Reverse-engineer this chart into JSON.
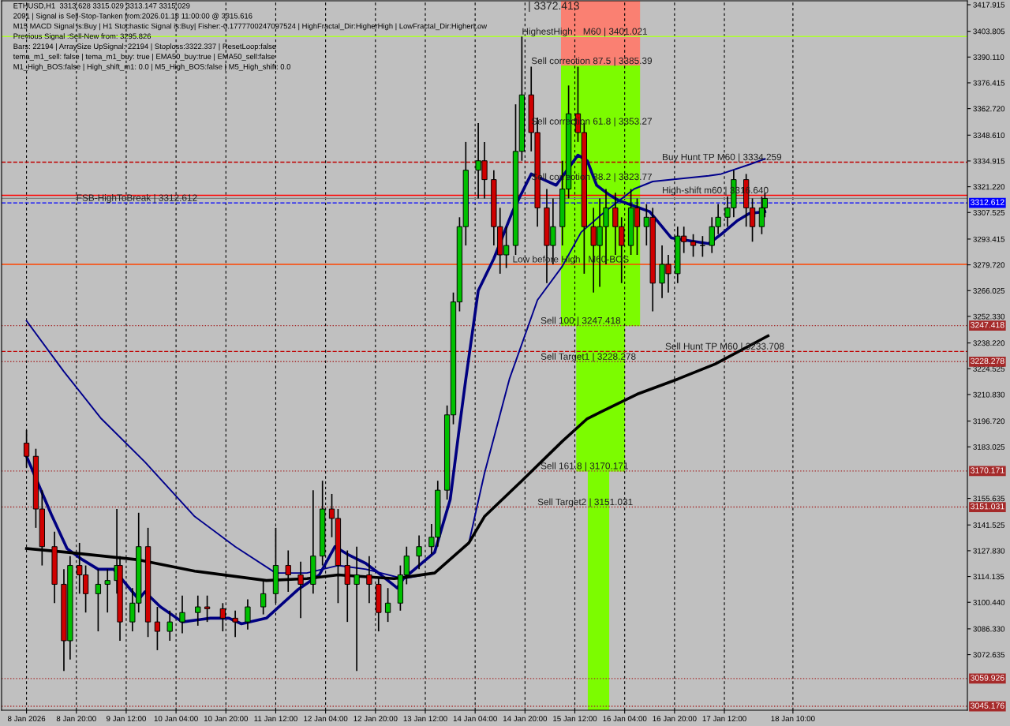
{
  "chart_data": {
    "type": "candlestick",
    "x": [
      "2026-01-08T04:00",
      "2026-01-08T07:00",
      "2026-01-08T09:00",
      "2026-01-08T13:00",
      "2026-01-08T16:00",
      "2026-01-08T18:00",
      "2026-01-08T21:00",
      "2026-01-08T23:00",
      "2026-01-09T03:00",
      "2026-01-09T06:00",
      "2026-01-09T09:00",
      "2026-01-09T10:00",
      "2026-01-09T14:00",
      "2026-01-09T16:00",
      "2026-01-09T19:00",
      "2026-01-09T22:00",
      "2026-01-10T02:00",
      "2026-01-10T06:00",
      "2026-01-10T11:00",
      "2026-01-10T14:00",
      "2026-01-10T19:00",
      "2026-01-10T23:00",
      "2026-01-11T03:00",
      "2026-01-11T08:00",
      "2026-01-11T12:00",
      "2026-01-11T16:00",
      "2026-01-11T20:00",
      "2026-01-12T00:00",
      "2026-01-12T03:00",
      "2026-01-12T06:00",
      "2026-01-12T08:00",
      "2026-01-12T11:00",
      "2026-01-12T14:00",
      "2026-01-12T18:00",
      "2026-01-12T21:00",
      "2026-01-13T00:00",
      "2026-01-13T04:00",
      "2026-01-13T06:00",
      "2026-01-13T10:00",
      "2026-01-13T14:00",
      "2026-01-13T16:00",
      "2026-01-13T19:00",
      "2026-01-13T21:00",
      "2026-01-13T23:00",
      "2026-01-14T01:00",
      "2026-01-14T05:00",
      "2026-01-14T07:00",
      "2026-01-14T10:00",
      "2026-01-14T12:00",
      "2026-01-14T14:00",
      "2026-01-14T17:00",
      "2026-01-14T19:00",
      "2026-01-14T22:00",
      "2026-01-15T00:00",
      "2026-01-15T03:00",
      "2026-01-15T05:00",
      "2026-01-15T08:00",
      "2026-01-15T10:00",
      "2026-01-15T13:00",
      "2026-01-15T15:00",
      "2026-01-15T18:00",
      "2026-01-15T20:00",
      "2026-01-15T22:00",
      "2026-01-16T01:00",
      "2026-01-16T03:00",
      "2026-01-16T06:00",
      "2026-01-16T08:00",
      "2026-01-16T11:00",
      "2026-01-16T13:00",
      "2026-01-16T16:00",
      "2026-01-16T18:00",
      "2026-01-16T21:00",
      "2026-01-16T23:00",
      "2026-01-17T02:00",
      "2026-01-17T05:00",
      "2026-01-17T08:00",
      "2026-01-17T10:00",
      "2026-01-17T13:00",
      "2026-01-17T15:00",
      "2026-01-17T19:00",
      "2026-01-17T21:00",
      "2026-01-18T00:00",
      "2026-01-18T01:00"
    ],
    "ohlc": [
      [
        3185,
        3192,
        3172,
        3178
      ],
      [
        3178,
        3182,
        3140,
        3150
      ],
      [
        3150,
        3160,
        3120,
        3130
      ],
      [
        3130,
        3138,
        3100,
        3110
      ],
      [
        3110,
        3118,
        3064,
        3080
      ],
      [
        3080,
        3125,
        3070,
        3120
      ],
      [
        3120,
        3132,
        3105,
        3115
      ],
      [
        3115,
        3120,
        3095,
        3105
      ],
      [
        3105,
        3118,
        3085,
        3110
      ],
      [
        3110,
        3118,
        3095,
        3112
      ],
      [
        3112,
        3150,
        3105,
        3120
      ],
      [
        3120,
        3125,
        3080,
        3090
      ],
      [
        3090,
        3108,
        3085,
        3100
      ],
      [
        3100,
        3148,
        3095,
        3130
      ],
      [
        3130,
        3140,
        3082,
        3090
      ],
      [
        3090,
        3098,
        3075,
        3085
      ],
      [
        3085,
        3096,
        3080,
        3090
      ],
      [
        3090,
        3104,
        3084,
        3095
      ],
      [
        3095,
        3104,
        3088,
        3098
      ],
      [
        3098,
        3104,
        3090,
        3097
      ],
      [
        3097,
        3100,
        3085,
        3092
      ],
      [
        3092,
        3096,
        3082,
        3090
      ],
      [
        3090,
        3102,
        3086,
        3098
      ],
      [
        3098,
        3112,
        3094,
        3105
      ],
      [
        3105,
        3140,
        3100,
        3120
      ],
      [
        3120,
        3128,
        3106,
        3115
      ],
      [
        3115,
        3122,
        3092,
        3110
      ],
      [
        3110,
        3160,
        3105,
        3125
      ],
      [
        3125,
        3165,
        3120,
        3150
      ],
      [
        3150,
        3158,
        3135,
        3145
      ],
      [
        3145,
        3150,
        3100,
        3120
      ],
      [
        3120,
        3128,
        3090,
        3110
      ],
      [
        3110,
        3130,
        3064,
        3115
      ],
      [
        3115,
        3125,
        3100,
        3110
      ],
      [
        3110,
        3114,
        3085,
        3095
      ],
      [
        3095,
        3108,
        3090,
        3100
      ],
      [
        3100,
        3120,
        3096,
        3115
      ],
      [
        3115,
        3130,
        3110,
        3125
      ],
      [
        3125,
        3136,
        3118,
        3130
      ],
      [
        3130,
        3142,
        3126,
        3135
      ],
      [
        3135,
        3165,
        3130,
        3160
      ],
      [
        3160,
        3205,
        3155,
        3200
      ],
      [
        3200,
        3265,
        3195,
        3260
      ],
      [
        3260,
        3305,
        3255,
        3300
      ],
      [
        3300,
        3345,
        3290,
        3330
      ],
      [
        3330,
        3355,
        3315,
        3335
      ],
      [
        3335,
        3345,
        3315,
        3325
      ],
      [
        3325,
        3330,
        3290,
        3300
      ],
      [
        3300,
        3310,
        3275,
        3285
      ],
      [
        3285,
        3300,
        3278,
        3290
      ],
      [
        3290,
        3365,
        3285,
        3340
      ],
      [
        3340,
        3401,
        3335,
        3370
      ],
      [
        3370,
        3385,
        3340,
        3350
      ],
      [
        3350,
        3358,
        3300,
        3310
      ],
      [
        3310,
        3320,
        3270,
        3290
      ],
      [
        3290,
        3315,
        3280,
        3300
      ],
      [
        3300,
        3335,
        3290,
        3320
      ],
      [
        3320,
        3375,
        3315,
        3360
      ],
      [
        3360,
        3385,
        3345,
        3350
      ],
      [
        3350,
        3355,
        3275,
        3300
      ],
      [
        3300,
        3310,
        3265,
        3290
      ],
      [
        3290,
        3315,
        3268,
        3300
      ],
      [
        3300,
        3320,
        3280,
        3310
      ],
      [
        3310,
        3318,
        3285,
        3300
      ],
      [
        3300,
        3305,
        3270,
        3290
      ],
      [
        3290,
        3320,
        3285,
        3310
      ],
      [
        3310,
        3315,
        3285,
        3300
      ],
      [
        3300,
        3312,
        3290,
        3305
      ],
      [
        3305,
        3310,
        3255,
        3270
      ],
      [
        3270,
        3290,
        3262,
        3280
      ],
      [
        3280,
        3285,
        3265,
        3275
      ],
      [
        3275,
        3300,
        3270,
        3295
      ],
      [
        3295,
        3300,
        3286,
        3292
      ],
      [
        3292,
        3296,
        3284,
        3290
      ],
      [
        3290,
        3295,
        3284,
        3290
      ],
      [
        3290,
        3305,
        3286,
        3300
      ],
      [
        3300,
        3312,
        3296,
        3305
      ],
      [
        3305,
        3316,
        3300,
        3310
      ],
      [
        3310,
        3330,
        3305,
        3325
      ],
      [
        3325,
        3328,
        3300,
        3310
      ],
      [
        3310,
        3315,
        3292,
        3300
      ],
      [
        3300,
        3316,
        3296,
        3310
      ],
      [
        3310,
        3318,
        3305,
        3315
      ]
    ],
    "series": [
      {
        "type": "line",
        "color": "#fa8072",
        "x": [
          "2026-01-15T07:42",
          "2026-01-16T08:48"
        ],
        "values": [
          null,
          null
        ],
        "lower": [
          3385.4,
          3385.4
        ],
        "upper": [
          3420,
          3420
        ]
      },
      {
        "type": "line",
        "color": "#7cfc00",
        "x": [
          "2026-01-15T07:42",
          "2026-01-15T12:36",
          "2026-01-15T12:36",
          "2026-01-15T16:18",
          "2026-01-15T16:18",
          "2026-01-15T22:54",
          "2026-01-15T22:54",
          "2026-01-16T03:54",
          "2026-01-16T03:54",
          "2026-01-16T08:48"
        ],
        "values": [
          null,
          null,
          null,
          null,
          null,
          null,
          null,
          null,
          null,
          null
        ],
        "lower": [
          3247.4,
          3247.4,
          3170.2,
          3170.2,
          3043.1,
          3043.1,
          3170.2,
          3170.2,
          3247.4,
          3247.4
        ],
        "upper": [
          3385.4,
          3385.4,
          3385.4,
          3385.4,
          3385.4,
          3385.4,
          3385.4,
          3385.4,
          3385.4,
          3385.4
        ]
      },
      {
        "type": "line",
        "color": "#000080",
        "x": [
          "2026-01-08T04:00",
          "2026-01-08T12:00",
          "2026-01-08T17:00",
          "2026-01-08T22:00",
          "2026-01-09T03:00",
          "2026-01-09T08:00",
          "2026-01-09T16:00",
          "2026-01-09T18:00",
          "2026-01-09T23:00",
          "2026-01-10T06:00",
          "2026-01-10T15:00",
          "2026-01-10T21:00",
          "2026-01-11T01:00",
          "2026-01-11T09:00",
          "2026-01-11T19:00",
          "2026-01-12T02:00",
          "2026-01-12T07:00",
          "2026-01-12T11:00",
          "2026-01-12T17:00",
          "2026-01-12T21:00",
          "2026-01-13T03:00",
          "2026-01-13T05:00",
          "2026-01-13T15:00",
          "2026-01-13T20:00",
          "2026-01-13T23:00",
          "2026-01-14T01:00",
          "2026-01-14T05:00",
          "2026-01-14T10:00",
          "2026-01-14T16:00",
          "2026-01-14T22:00",
          "2026-01-15T02:00",
          "2026-01-15T06:00",
          "2026-01-15T13:00",
          "2026-01-15T16:00",
          "2026-01-15T19:00",
          "2026-01-15T23:00",
          "2026-01-16T02:00",
          "2026-01-16T07:00",
          "2026-01-16T12:00",
          "2026-01-16T19:00",
          "2026-01-16T23:00",
          "2026-01-17T07:00",
          "2026-01-17T11:00",
          "2026-01-17T16:00",
          "2026-01-17T20:00",
          "2026-01-18T01:00"
        ],
        "values": [
          3178,
          3147,
          3129,
          3123,
          3118,
          3118,
          3102,
          3106,
          3098,
          3090,
          3092,
          3092,
          3089,
          3092,
          3107,
          3115,
          3130,
          3126,
          3121,
          3116,
          3108,
          3113,
          3127,
          3155,
          3194,
          3219,
          3266,
          3283,
          3308,
          3328,
          3325,
          3322,
          3338,
          3335,
          3322,
          3317,
          3314,
          3311,
          3308,
          3294,
          3293,
          3291,
          3296,
          3303,
          3307,
          3308
        ]
      },
      {
        "type": "line",
        "color": "#00008b",
        "x": [
          "2026-01-08T04:00",
          "2026-01-08T16:00",
          "2026-01-09T04:00",
          "2026-01-09T18:00",
          "2026-01-10T10:00",
          "2026-01-10T23:00",
          "2026-01-11T12:00",
          "2026-01-11T22:00",
          "2026-01-12T08:00",
          "2026-01-12T17:00",
          "2026-01-13T05:00",
          "2026-01-13T15:00",
          "2026-01-14T02:00",
          "2026-01-14T07:00",
          "2026-01-14T15:00",
          "2026-01-15T00:00",
          "2026-01-15T08:00",
          "2026-01-15T14:00",
          "2026-01-15T21:00",
          "2026-01-16T07:00",
          "2026-01-16T13:00",
          "2026-01-17T07:00",
          "2026-01-17T11:00",
          "2026-01-17T20:00",
          "2026-01-18T01:00"
        ],
        "values": [
          3250,
          3223,
          3198,
          3175,
          3146,
          3130,
          3116,
          3116,
          3120,
          3118,
          3113,
          3116,
          3132,
          3169,
          3219,
          3261,
          3279,
          3297,
          3307,
          3320,
          3324,
          3327,
          3328,
          3333,
          3336
        ]
      },
      {
        "type": "line",
        "color": "#000000",
        "x": [
          "2026-01-08T04:00",
          "2026-01-08T17:00",
          "2026-01-09T16:00",
          "2026-01-10T10:00",
          "2026-01-11T09:00",
          "2026-01-11T22:00",
          "2026-01-12T08:00",
          "2026-01-13T02:00",
          "2026-01-13T15:00",
          "2026-01-14T02:00",
          "2026-01-14T07:00",
          "2026-01-14T19:00",
          "2026-01-15T08:00",
          "2026-01-15T16:00",
          "2026-01-16T08:00",
          "2026-01-16T21:00",
          "2026-01-17T09:00",
          "2026-01-18T02:00"
        ],
        "values": [
          3129,
          3127,
          3123,
          3117,
          3112,
          3113,
          3115,
          3113,
          3116,
          3132,
          3146,
          3165,
          3186,
          3198,
          3211,
          3219,
          3227,
          3242
        ]
      }
    ],
    "xlim": [
      "2026-01-07T20:00",
      "2026-01-20T18:00"
    ],
    "xticks": [
      {
        "value": "2026-01-08T04:00",
        "label": "8 Jan 2026"
      },
      {
        "value": "2026-01-08T20:00",
        "label": "8 Jan 20:00"
      },
      {
        "value": "2026-01-09T12:00",
        "label": "9 Jan 12:00"
      },
      {
        "value": "2026-01-10T04:00",
        "label": "10 Jan 04:00"
      },
      {
        "value": "2026-01-10T20:00",
        "label": "10 Jan 20:00"
      },
      {
        "value": "2026-01-11T12:00",
        "label": "11 Jan 12:00"
      },
      {
        "value": "2026-01-12T04:00",
        "label": "12 Jan 04:00"
      },
      {
        "value": "2026-01-12T20:00",
        "label": "12 Jan 20:00"
      },
      {
        "value": "2026-01-13T12:00",
        "label": "13 Jan 12:00"
      },
      {
        "value": "2026-01-14T04:00",
        "label": "14 Jan 04:00"
      },
      {
        "value": "2026-01-14T20:00",
        "label": "14 Jan 20:00"
      },
      {
        "value": "2026-01-15T12:00",
        "label": "15 Jan 12:00"
      },
      {
        "value": "2026-01-16T04:00",
        "label": "16 Jan 04:00"
      },
      {
        "value": "2026-01-16T20:00",
        "label": "16 Jan 20:00"
      },
      {
        "value": "2026-01-17T12:00",
        "label": "17 Jan 12:00"
      },
      {
        "value": "2026-01-18T10:00",
        "label": "18 Jan 10:00"
      }
    ],
    "ylim": [
      3043.1,
      3420.0
    ],
    "yticks": [
      {
        "value": 3417.915,
        "label": "3417.915"
      },
      {
        "value": 3403.805,
        "label": "3403.805"
      },
      {
        "value": 3390.11,
        "label": "3390.110"
      },
      {
        "value": 3376.415,
        "label": "3376.415"
      },
      {
        "value": 3362.72,
        "label": "3362.720"
      },
      {
        "value": 3348.61,
        "label": "3348.610"
      },
      {
        "value": 3334.915,
        "label": "3334.915"
      },
      {
        "value": 3321.22,
        "label": "3321.220"
      },
      {
        "value": 3307.525,
        "label": "3307.525"
      },
      {
        "value": 3293.415,
        "label": "3293.415"
      },
      {
        "value": 3279.72,
        "label": "3279.720"
      },
      {
        "value": 3266.025,
        "label": "3266.025"
      },
      {
        "value": 3252.33,
        "label": "3252.330"
      },
      {
        "value": 3238.22,
        "label": "3238.220"
      },
      {
        "value": 3224.525,
        "label": "3224.525"
      },
      {
        "value": 3210.83,
        "label": "3210.830"
      },
      {
        "value": 3196.72,
        "label": "3196.720"
      },
      {
        "value": 3183.025,
        "label": "3183.025"
      },
      {
        "value": 3155.635,
        "label": "3155.635"
      },
      {
        "value": 3141.525,
        "label": "3141.525"
      },
      {
        "value": 3127.83,
        "label": "3127.830"
      },
      {
        "value": 3114.135,
        "label": "3114.135"
      },
      {
        "value": 3100.44,
        "label": "3100.440"
      },
      {
        "value": 3086.33,
        "label": "3086.330"
      },
      {
        "value": 3072.635,
        "label": "3072.635"
      }
    ],
    "grid": "x",
    "ref_lines": [
      {
        "axis": "y",
        "value": 3401.021,
        "color": "#adff2f",
        "line_style": "solid"
      },
      {
        "axis": "y",
        "value": 3334.259,
        "color": "#c00000",
        "line_style": "dashed"
      },
      {
        "axis": "y",
        "value": 3316.64,
        "color": "#ff0000",
        "line_style": "solid"
      },
      {
        "axis": "y",
        "value": 3315.029,
        "color": "#808080",
        "line_style": "solid"
      },
      {
        "axis": "y",
        "value": 3312.612,
        "label": "3312.612",
        "color": "#0000ff",
        "line_style": "dashed"
      },
      {
        "axis": "y",
        "value": 3280,
        "color": "#ff4500",
        "line_style": "solid"
      },
      {
        "axis": "y",
        "value": 3247.418,
        "label": "3247.418",
        "color": "#a52a2a",
        "line_style": "dotted"
      },
      {
        "axis": "y",
        "value": 3233.708,
        "color": "#c00000",
        "line_style": "dashed"
      },
      {
        "axis": "y",
        "value": 3228.278,
        "label": "3228.278",
        "color": "#a52a2a",
        "line_style": "dotted"
      },
      {
        "axis": "y",
        "value": 3170.171,
        "label": "3170.171",
        "color": "#a52a2a",
        "line_style": "dotted"
      },
      {
        "axis": "y",
        "value": 3151.031,
        "label": "3151.031",
        "color": "#a52a2a",
        "line_style": "dotted"
      },
      {
        "axis": "y",
        "value": 3059.926,
        "label": "3059.926",
        "color": "#a52a2a",
        "line_style": "dotted"
      },
      {
        "axis": "y",
        "value": 3045.176,
        "label": "3045.176",
        "color": "#a52a2a",
        "line_style": "dotted"
      }
    ],
    "annotations": [
      "ETHUSD,H1  3313.628 3315.029 3313.147 3315.029",
      "2091 | Signal is Sell-Stop-Tanken from:2026.01.18 11:00:00 @ 3315.616",
      "M15 MACD Signal is:Buy | H1 Stochastic Signal is:Buy| Fisher:-0.1777700247097524 | HighFractal_Dir:HigherHigh | LowFractal_Dir:HigherLow",
      "Previous Signal :Sell-New from: 3295.826",
      "Bars: 22194 | ArraySize UpSignal: 22194 | Stoploss:3322.337 | ResetLoop:false",
      "tema_m1_sell: false | tema_m1_buy: true | EMA50_buy:true | EMA50_sell:false",
      "M1_High_BOS:false | High_shift_m1: 0.0 | M5_High_BOS:false | M5_High_shift: 0.0",
      "| 3372.413",
      {
        "text": "HighestHigh    M60 | 3401.021",
        "x": "2026-01-14T19:00",
        "y": 3401.021
      },
      {
        "text": "Sell correction 87.5 | 3385.39",
        "x": "2026-01-14T22:00",
        "y": 3385.39
      },
      {
        "text": "Sell correction 61.8 | 3353.27",
        "x": "2026-01-14T22:00",
        "y": 3353.27
      },
      {
        "text": "Sell correction 38.2 | 3323.77",
        "x": "2026-01-14T22:00",
        "y": 3323.77
      },
      {
        "text": "Buy Hunt TP M60 | 3334.259",
        "x": "2026-01-16T16:00",
        "y": 3334.259
      },
      {
        "text": "High-shift m60 | 3316.640",
        "x": "2026-01-16T16:00",
        "y": 3316.64
      },
      {
        "text": "FSB-HighToBreak | 3312.612",
        "x": "2026-01-08T20:00",
        "y": 3312.612
      },
      {
        "text": "Low before High   M60-BOS",
        "x": "2026-01-14T16:00",
        "y": 3280
      },
      {
        "text": "Sell 100 | 3247.418",
        "x": "2026-01-15T01:00",
        "y": 3247.418
      },
      {
        "text": "Sell Hunt TP M60 | 3233.708",
        "x": "2026-01-16T17:00",
        "y": 3233.708
      },
      {
        "text": "Sell Target1 | 3228.278",
        "x": "2026-01-15T01:00",
        "y": 3228.278
      },
      {
        "text": "Sell 161.8 | 3170.171",
        "x": "2026-01-15T01:00",
        "y": 3170.171
      },
      {
        "text": "Sell Target2 | 3151.031",
        "x": "2026-01-15T00:00",
        "y": 3151.031
      }
    ]
  }
}
